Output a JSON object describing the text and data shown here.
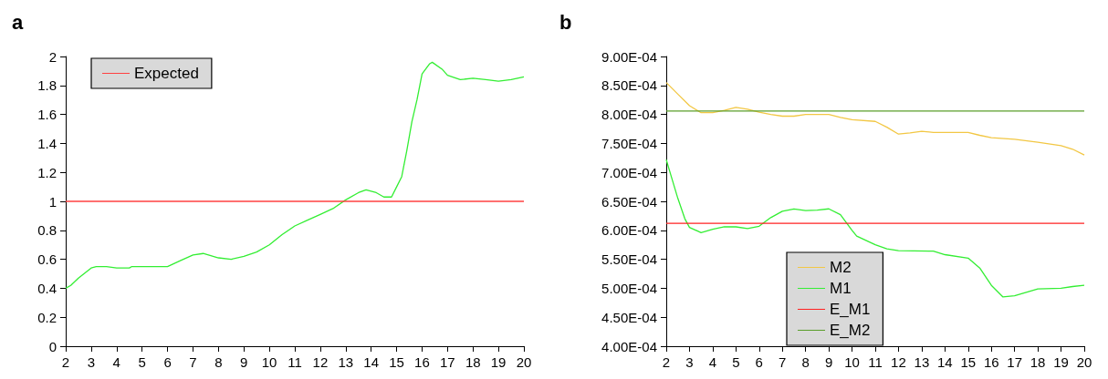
{
  "chart_data": [
    {
      "type": "line",
      "title": "a",
      "xlim": [
        2,
        20
      ],
      "xticks": [
        2,
        3,
        4,
        5,
        6,
        7,
        8,
        9,
        10,
        11,
        12,
        13,
        14,
        15,
        16,
        17,
        18,
        19,
        20
      ],
      "ylim": [
        0,
        2
      ],
      "yticks": [
        0,
        0.2,
        0.4,
        0.6,
        0.8,
        1,
        1.2,
        1.4,
        1.6,
        1.8,
        2
      ],
      "grid": false,
      "legend": "top left",
      "marker": "none",
      "series": [
        {
          "color": "#33ee33",
          "x": [
            2,
            2.2,
            2.5,
            3,
            3.2,
            3.6,
            4,
            4.5,
            4.6,
            5,
            6,
            6.5,
            7,
            7.4,
            8,
            8.5,
            9,
            9.5,
            10,
            10.5,
            11,
            11.5,
            12,
            12.5,
            13,
            13.5,
            13.8,
            14.2,
            14.5,
            14.8,
            15,
            15.2,
            15.4,
            15.6,
            15.8,
            16,
            16.3,
            16.4,
            16.8,
            17,
            17.5,
            18,
            18.5,
            19,
            19.5,
            20
          ],
          "values": [
            0.4,
            0.42,
            0.47,
            0.54,
            0.55,
            0.55,
            0.54,
            0.54,
            0.55,
            0.55,
            0.55,
            0.59,
            0.63,
            0.64,
            0.61,
            0.6,
            0.62,
            0.65,
            0.7,
            0.77,
            0.83,
            0.87,
            0.91,
            0.95,
            1.01,
            1.06,
            1.08,
            1.06,
            1.03,
            1.03,
            1.1,
            1.17,
            1.35,
            1.55,
            1.7,
            1.88,
            1.95,
            1.96,
            1.91,
            1.87,
            1.84,
            1.85,
            1.84,
            1.83,
            1.84,
            1.86
          ]
        },
        {
          "name": "Expected",
          "color": "#ff4040",
          "x": [
            2,
            20
          ],
          "values": [
            1,
            1
          ]
        }
      ]
    },
    {
      "type": "line",
      "title": "b",
      "xlim": [
        2,
        20
      ],
      "xticks": [
        2,
        3,
        4,
        5,
        6,
        7,
        8,
        9,
        10,
        11,
        12,
        13,
        14,
        15,
        16,
        17,
        18,
        19,
        20
      ],
      "ylim": [
        0.0004,
        0.0009
      ],
      "yticks": [
        {
          "value": 0.0004,
          "label": "4.00E-04"
        },
        {
          "value": 0.00045,
          "label": "4.50E-04"
        },
        {
          "value": 0.0005,
          "label": "5.00E-04"
        },
        {
          "value": 0.00055,
          "label": "5.50E-04"
        },
        {
          "value": 0.0006,
          "label": "6.00E-04"
        },
        {
          "value": 0.00065,
          "label": "6.50E-04"
        },
        {
          "value": 0.0007,
          "label": "7.00E-04"
        },
        {
          "value": 0.00075,
          "label": "7.50E-04"
        },
        {
          "value": 0.0008,
          "label": "8.00E-04"
        },
        {
          "value": 0.00085,
          "label": "8.50E-04"
        },
        {
          "value": 0.0009,
          "label": "9.00E-04"
        }
      ],
      "grid": false,
      "legend": "bottom",
      "marker": "none",
      "series": [
        {
          "name": "M2",
          "color": "#f2c744",
          "x": [
            2,
            2.5,
            3,
            3.5,
            4,
            4.5,
            5,
            5.5,
            6,
            6.5,
            7,
            7.5,
            8,
            9,
            9.5,
            10,
            11,
            11.5,
            12,
            12.5,
            13,
            13.5,
            15,
            15.5,
            16,
            17,
            18,
            19,
            19.5,
            20
          ],
          "values": [
            0.000855,
            0.000835,
            0.000815,
            0.000803,
            0.000803,
            0.000807,
            0.000812,
            0.000809,
            0.000804,
            0.0008,
            0.000797,
            0.000797,
            0.0008,
            0.0008,
            0.000795,
            0.000791,
            0.000788,
            0.000778,
            0.000766,
            0.000768,
            0.000771,
            0.000769,
            0.000769,
            0.000764,
            0.00076,
            0.000757,
            0.000752,
            0.000746,
            0.00074,
            0.00073
          ]
        },
        {
          "name": "M1",
          "color": "#33ee33",
          "x": [
            2,
            2.2,
            2.5,
            2.8,
            3,
            3.5,
            4,
            4.5,
            5,
            5.5,
            6,
            6.5,
            7,
            7.5,
            8,
            8.5,
            9,
            9.5,
            10,
            10.2,
            11,
            11.5,
            12,
            13.5,
            14,
            15,
            15.5,
            16,
            16.5,
            17,
            17.5,
            18,
            19,
            19.5,
            20
          ],
          "values": [
            0.000722,
            0.000695,
            0.000655,
            0.00062,
            0.000605,
            0.000596,
            0.000602,
            0.000606,
            0.000606,
            0.000603,
            0.000607,
            0.000622,
            0.000633,
            0.000637,
            0.000634,
            0.000635,
            0.000637,
            0.000627,
            0.0006,
            0.00059,
            0.000575,
            0.000568,
            0.000565,
            0.000564,
            0.000558,
            0.000552,
            0.000535,
            0.000505,
            0.000485,
            0.000487,
            0.000493,
            0.000499,
            0.0005,
            0.000503,
            0.000505
          ]
        },
        {
          "name": "E_M1",
          "color": "#ff2020",
          "x": [
            2,
            20
          ],
          "values": [
            0.000612,
            0.000612
          ]
        },
        {
          "name": "E_M2",
          "color": "#5a9e2a",
          "x": [
            2,
            20
          ],
          "values": [
            0.000806,
            0.000806
          ]
        }
      ]
    }
  ]
}
